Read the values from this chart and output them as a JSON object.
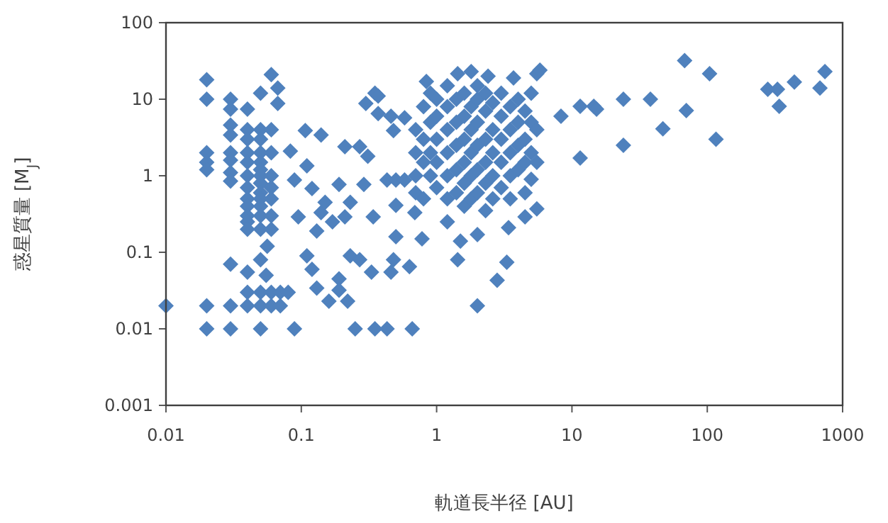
{
  "chart_data": {
    "type": "scatter",
    "xlabel": "軌道長半径 [AU]",
    "ylabel": "惑星質量 [M$_{J}$]",
    "color": "#4f81bd",
    "marker": "diamond",
    "log": "xy",
    "xlim": [
      0.01,
      1000
    ],
    "ylim": [
      0.001,
      100
    ],
    "xticks": [
      0.01,
      0.1,
      1,
      10,
      100,
      1000
    ],
    "yticks": [
      0.001,
      0.01,
      0.1,
      1,
      10,
      100
    ],
    "x": [
      0.01,
      0.02,
      0.02,
      0.02,
      0.02,
      0.02,
      0.02,
      0.02,
      0.03,
      0.03,
      0.03,
      0.03,
      0.03,
      0.03,
      0.03,
      0.03,
      0.03,
      0.03,
      0.03,
      0.04,
      0.04,
      0.04,
      0.04,
      0.04,
      0.04,
      0.04,
      0.04,
      0.04,
      0.04,
      0.04,
      0.04,
      0.04,
      0.05,
      0.05,
      0.05,
      0.05,
      0.05,
      0.05,
      0.05,
      0.05,
      0.05,
      0.05,
      0.05,
      0.05,
      0.06,
      0.06,
      0.06,
      0.06,
      0.06,
      0.06,
      0.06,
      0.05,
      0.06,
      0.067,
      0.067,
      0.05,
      0.055,
      0.056,
      0.04,
      0.05,
      0.06,
      0.07,
      0.08,
      0.04,
      0.05,
      0.06,
      0.07,
      0.05,
      0.089,
      0.095,
      0.107,
      0.14,
      0.083,
      0.089,
      0.11,
      0.12,
      0.14,
      0.15,
      0.17,
      0.19,
      0.21,
      0.23,
      0.21,
      0.27,
      0.31,
      0.29,
      0.34,
      0.37,
      0.3,
      0.35,
      0.11,
      0.12,
      0.13,
      0.16,
      0.19,
      0.19,
      0.22,
      0.23,
      0.27,
      0.33,
      0.25,
      0.35,
      0.43,
      0.13,
      0.66,
      0.48,
      0.46,
      0.63,
      0.5,
      0.78,
      0.69,
      0.5,
      0.43,
      1.43,
      2,
      2.8,
      3.3,
      1.5,
      2,
      3.4,
      4.5,
      5.5,
      1.2,
      0.84,
      1.43,
      1.8,
      2.4,
      3.7,
      5.5,
      5.8,
      8.3,
      11.5,
      14.5,
      11.5,
      0.46,
      0.48,
      0.58,
      0.5,
      0.58,
      0.37,
      15.2,
      24,
      38,
      24,
      47,
      68,
      70,
      104,
      116,
      280,
      330,
      340,
      440,
      680,
      740,
      0.7,
      0.7,
      0.7,
      0.7,
      0.8,
      0.8,
      0.8,
      0.8,
      0.9,
      0.9,
      0.9,
      0.9,
      1.0,
      1.0,
      1.0,
      1.0,
      1.0,
      1.2,
      1.2,
      1.2,
      1.2,
      1.2,
      1.2,
      1.4,
      1.4,
      1.4,
      1.4,
      1.4,
      1.6,
      1.6,
      1.6,
      1.6,
      1.6,
      1.6,
      1.8,
      1.8,
      1.8,
      1.8,
      1.8,
      2.0,
      2.0,
      2.0,
      2.0,
      2.0,
      2.0,
      2.3,
      2.3,
      2.3,
      2.3,
      2.3,
      2.3,
      2.6,
      2.6,
      2.6,
      2.6,
      2.6,
      3.0,
      3.0,
      3.0,
      3.0,
      3.0,
      3.5,
      3.5,
      3.5,
      3.5,
      3.5,
      4.0,
      4.0,
      4.0,
      4.0,
      4.5,
      4.5,
      4.5,
      4.5,
      5.0,
      5.0,
      5.0,
      5.0,
      5.5,
      5.5
    ],
    "values": [
      0.02,
      18,
      10,
      2,
      1.5,
      1.2,
      0.02,
      0.01,
      10,
      7.4,
      4.6,
      3.4,
      2,
      1.6,
      1.1,
      0.85,
      0.07,
      0.02,
      0.01,
      7.4,
      0.055,
      4,
      3,
      2,
      1.5,
      1,
      0.7,
      0.5,
      0.4,
      0.3,
      0.25,
      0.2,
      4,
      3,
      2,
      1.5,
      1.2,
      1,
      0.8,
      0.6,
      0.5,
      0.4,
      0.3,
      0.2,
      4,
      2,
      1,
      0.7,
      0.5,
      0.3,
      0.2,
      12,
      21,
      14,
      8.8,
      0.08,
      0.05,
      0.12,
      0.03,
      0.03,
      0.03,
      0.03,
      0.03,
      0.02,
      0.02,
      0.02,
      0.02,
      0.01,
      0.01,
      0.29,
      3.9,
      3.4,
      2.1,
      0.88,
      1.35,
      0.68,
      0.33,
      0.45,
      0.25,
      0.77,
      0.29,
      0.45,
      2.4,
      2.4,
      1.8,
      0.77,
      0.29,
      6.5,
      8.8,
      12,
      0.09,
      0.06,
      0.034,
      0.023,
      0.045,
      0.032,
      0.023,
      0.09,
      0.08,
      0.055,
      0.01,
      0.01,
      0.01,
      0.19,
      0.01,
      0.08,
      0.055,
      0.065,
      0.16,
      0.15,
      0.33,
      0.41,
      0.88,
      0.08,
      0.02,
      0.043,
      0.074,
      0.14,
      0.17,
      0.21,
      0.29,
      0.37,
      0.25,
      17,
      21.5,
      23,
      20,
      19,
      21.5,
      24,
      6,
      8.1,
      8.1,
      1.7,
      6,
      3.9,
      5.7,
      0.88,
      0.88,
      11,
      7.4,
      10,
      10,
      2.5,
      4.1,
      32,
      7.1,
      21.5,
      3,
      13.5,
      13.5,
      8.1,
      16.8,
      14,
      23,
      1,
      2,
      4,
      0.6,
      3,
      1.5,
      8,
      0.5,
      5,
      2,
      1,
      12,
      6,
      3,
      1.5,
      0.7,
      10,
      8,
      4,
      2,
      1,
      0.5,
      15,
      10,
      5,
      2.5,
      1.2,
      0.6,
      12,
      6,
      3,
      1.5,
      0.8,
      0.4,
      8,
      4,
      2,
      1,
      0.5,
      15,
      10,
      5,
      2.5,
      1.2,
      0.6,
      12,
      7,
      3,
      1.5,
      0.8,
      0.35,
      9,
      4,
      2,
      1,
      0.5,
      12,
      6,
      3,
      1.5,
      0.7,
      8,
      4,
      2,
      1,
      0.5,
      10,
      5,
      2.5,
      1.2,
      7,
      3,
      1.5,
      0.6,
      12,
      5,
      2,
      0.9,
      4,
      1.5
    ]
  }
}
